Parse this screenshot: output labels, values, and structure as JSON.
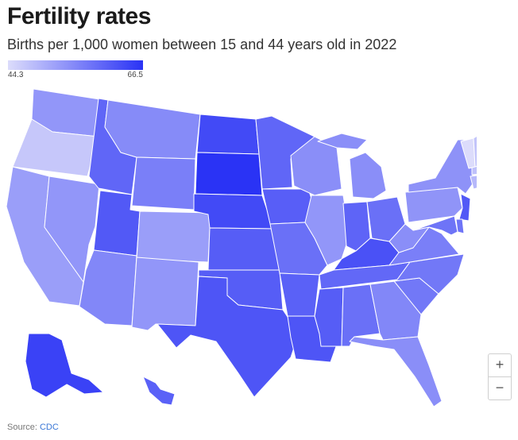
{
  "title": "Fertility rates",
  "subtitle": "Births per 1,000 women between 15 and 44 years old in 2022",
  "legend": {
    "min_label": "44.3",
    "max_label": "66.5",
    "min_color": "#dcdcfb",
    "max_color": "#2a33f5"
  },
  "colors": {
    "low": "#dcdcfb",
    "high": "#2a33f5"
  },
  "zoom": {
    "in_label": "+",
    "out_label": "−"
  },
  "source": {
    "prefix": "Source: ",
    "link_text": "CDC"
  },
  "map_data": {
    "type": "choropleth",
    "min": 44.3,
    "max": 66.5,
    "states": [
      {
        "id": "WA",
        "value": 53.5
      },
      {
        "id": "OR",
        "value": 47.0
      },
      {
        "id": "CA",
        "value": 52.5
      },
      {
        "id": "ID",
        "value": 59.8
      },
      {
        "id": "NV",
        "value": 53.5
      },
      {
        "id": "MT",
        "value": 55.0
      },
      {
        "id": "WY",
        "value": 56.5
      },
      {
        "id": "UT",
        "value": 61.5
      },
      {
        "id": "AZ",
        "value": 55.5
      },
      {
        "id": "CO",
        "value": 52.5
      },
      {
        "id": "NM",
        "value": 53.5
      },
      {
        "id": "ND",
        "value": 63.5
      },
      {
        "id": "SD",
        "value": 66.5
      },
      {
        "id": "NE",
        "value": 63.5
      },
      {
        "id": "KS",
        "value": 61.0
      },
      {
        "id": "OK",
        "value": 61.0
      },
      {
        "id": "TX",
        "value": 62.0
      },
      {
        "id": "MN",
        "value": 59.8
      },
      {
        "id": "IA",
        "value": 60.8
      },
      {
        "id": "MO",
        "value": 58.5
      },
      {
        "id": "AR",
        "value": 60.5
      },
      {
        "id": "LA",
        "value": 62.0
      },
      {
        "id": "WI",
        "value": 54.5
      },
      {
        "id": "IL",
        "value": 53.5
      },
      {
        "id": "MI",
        "value": 54.5
      },
      {
        "id": "IN",
        "value": 60.0
      },
      {
        "id": "OH",
        "value": 58.5
      },
      {
        "id": "KY",
        "value": 62.5
      },
      {
        "id": "TN",
        "value": 59.5
      },
      {
        "id": "MS",
        "value": 61.0
      },
      {
        "id": "AL",
        "value": 58.5
      },
      {
        "id": "GA",
        "value": 55.5
      },
      {
        "id": "FL",
        "value": 54.5
      },
      {
        "id": "SC",
        "value": 57.5
      },
      {
        "id": "NC",
        "value": 57.5
      },
      {
        "id": "VA",
        "value": 56.5
      },
      {
        "id": "WV",
        "value": 54.5
      },
      {
        "id": "PA",
        "value": 53.8
      },
      {
        "id": "NY",
        "value": 54.0
      },
      {
        "id": "NJ",
        "value": 61.5
      },
      {
        "id": "DE",
        "value": 58.0
      },
      {
        "id": "MD",
        "value": 58.0
      },
      {
        "id": "CT",
        "value": 49.0
      },
      {
        "id": "RI",
        "value": 47.5
      },
      {
        "id": "MA",
        "value": 48.0
      },
      {
        "id": "VT",
        "value": 44.3
      },
      {
        "id": "NH",
        "value": 47.5
      },
      {
        "id": "ME",
        "value": 49.5
      },
      {
        "id": "AK",
        "value": 64.5
      },
      {
        "id": "HI",
        "value": 60.5
      }
    ]
  }
}
